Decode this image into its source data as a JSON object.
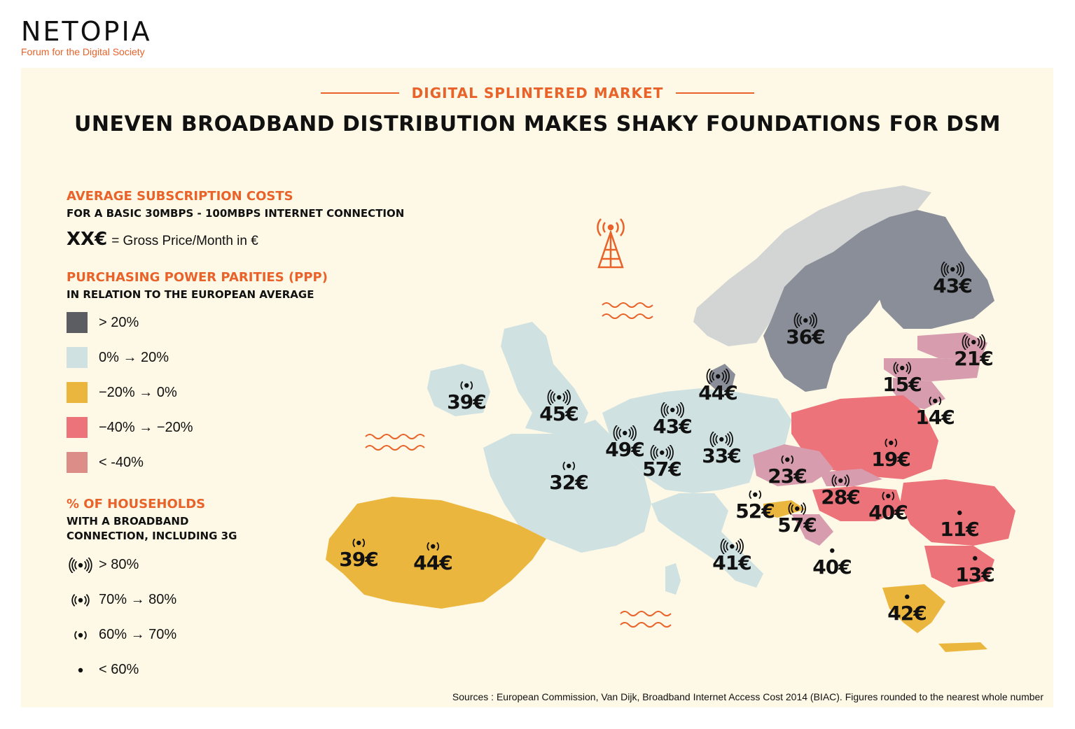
{
  "brand": {
    "logo": "NETOPIA",
    "tagline": "Forum for the Digital Society"
  },
  "header": {
    "eyebrow": "DIGITAL SPLINTERED MARKET",
    "title": "UNEVEN BROADBAND DISTRIBUTION MAKES SHAKY FOUNDATIONS FOR DSM"
  },
  "legend": {
    "costs_heading": "AVERAGE SUBSCRIPTION COSTS",
    "costs_sub": "FOR A BASIC 30MBPS - 100MBPS INTERNET CONNECTION",
    "price_key_symbol": "XX€",
    "price_key_text": "= Gross Price/Month in €",
    "ppp_heading": "PURCHASING POWER PARITIES (PPP)",
    "ppp_sub": "IN RELATION TO THE EUROPEAN AVERAGE",
    "ppp_items": [
      {
        "label": "> 20%",
        "color": "#5b5d63"
      },
      {
        "label": "0% → 20%",
        "color": "#cfe1e1"
      },
      {
        "label": "−20% → 0%",
        "color": "#ebb63e"
      },
      {
        "label": "−40% → −20%",
        "color": "#ec7379"
      },
      {
        "label": "< -40%",
        "color": "#dd8d87"
      }
    ],
    "households_heading": "% OF HOUSEHOLDS",
    "households_sub1": "WITH A BROADBAND",
    "households_sub2": "CONNECTION, INCLUDING 3G",
    "households_items": [
      {
        "label": "> 80%",
        "icon": "signal-3-waves-icon"
      },
      {
        "label": "70% → 80%",
        "icon": "signal-2-waves-icon"
      },
      {
        "label": "60% → 70%",
        "icon": "signal-1-wave-icon"
      },
      {
        "label": "< 60%",
        "icon": "dot-icon"
      }
    ]
  },
  "map": {
    "decoration": "broadcast-tower-icon",
    "markers": [
      {
        "value": "43€",
        "signal": 3
      },
      {
        "value": "36€",
        "signal": 3
      },
      {
        "value": "21€",
        "signal": 3
      },
      {
        "value": "15€",
        "signal": 2
      },
      {
        "value": "14€",
        "signal": 1
      },
      {
        "value": "39€",
        "signal": 1
      },
      {
        "value": "45€",
        "signal": 3
      },
      {
        "value": "44€",
        "signal": 3
      },
      {
        "value": "43€",
        "signal": 3
      },
      {
        "value": "49€",
        "signal": 3
      },
      {
        "value": "57€",
        "signal": 3
      },
      {
        "value": "33€",
        "signal": 3
      },
      {
        "value": "32€",
        "signal": 1
      },
      {
        "value": "23€",
        "signal": 1
      },
      {
        "value": "19€",
        "signal": 1
      },
      {
        "value": "28€",
        "signal": 2
      },
      {
        "value": "52€",
        "signal": 1
      },
      {
        "value": "57€",
        "signal": 2
      },
      {
        "value": "40€",
        "signal": 1
      },
      {
        "value": "11€",
        "signal": 0
      },
      {
        "value": "39€",
        "signal": 1
      },
      {
        "value": "44€",
        "signal": 1
      },
      {
        "value": "41€",
        "signal": 3
      },
      {
        "value": "40€",
        "signal": 0
      },
      {
        "value": "13€",
        "signal": 0
      },
      {
        "value": "42€",
        "signal": 0
      }
    ]
  },
  "source": "Sources : European Commission, Van Dijk, Broadband Internet Access Cost 2014 (BIAC). Figures rounded to the nearest whole number"
}
